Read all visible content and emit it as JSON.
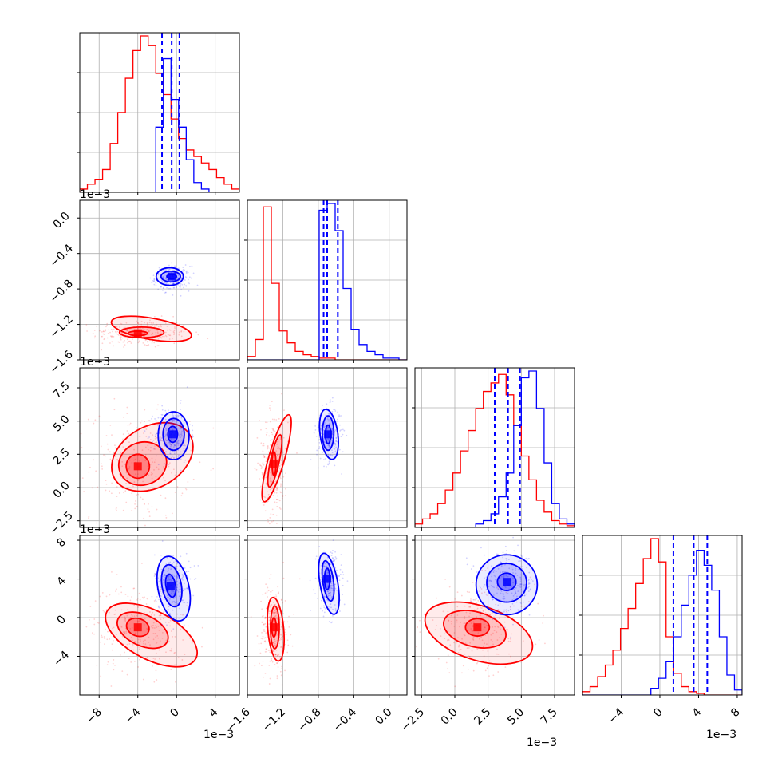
{
  "chart_data": {
    "type": "corner",
    "title": "",
    "grid": true,
    "series_colors": {
      "red": "#ff0000",
      "blue": "#0000ff"
    },
    "parameters": [
      {
        "id": "p0",
        "range": [
          -10,
          6.5
        ],
        "ticks": [
          -8,
          -4,
          0,
          4
        ],
        "tick_labels": [
          "−8",
          "−4",
          "0",
          "4"
        ],
        "offset_text": "1e−3"
      },
      {
        "id": "p1",
        "range": [
          -1.6,
          0.2
        ],
        "ticks": [
          -1.6,
          -1.2,
          -0.8,
          -0.4,
          0.0
        ],
        "tick_labels": [
          "−1.6",
          "−1.2",
          "−0.8",
          "−0.4",
          "0.0"
        ],
        "offset_text": "1e−3"
      },
      {
        "id": "p2",
        "range": [
          -3,
          9
        ],
        "ticks": [
          -2.5,
          0.0,
          2.5,
          5.0,
          7.5
        ],
        "tick_labels": [
          "−2.5",
          "0.0",
          "2.5",
          "5.0",
          "7.5"
        ],
        "offset_text": "1e−3"
      },
      {
        "id": "p3",
        "range": [
          -8,
          8.5
        ],
        "ticks": [
          -4,
          0,
          4,
          8
        ],
        "tick_labels": [
          "−4",
          "0",
          "4",
          "8"
        ],
        "offset_text": "1e−3",
        "y_ticks": [
          -4,
          0,
          4,
          8
        ],
        "y_tick_labels": [
          "−4",
          "0",
          "4",
          "8"
        ]
      }
    ],
    "series": [
      {
        "color": "red",
        "mean": [
          -3.8,
          -1.3,
          1.7,
          -1.0
        ],
        "sd": [
          2.2,
          0.07,
          1.8,
          2.0
        ],
        "histograms": [
          {
            "edges": [
              -10,
              6.5
            ],
            "counts": [
              2,
              5,
              8,
              14,
              30,
              49,
              70,
              87,
              96,
              90,
              73,
              60,
              45,
              33,
              26,
              22,
              18,
              14,
              9,
              5,
              2
            ]
          },
          {
            "edges": [
              -1.6,
              0.2
            ],
            "counts": [
              2,
              12,
              90,
              45,
              17,
              10,
              5,
              3,
              2,
              1,
              1,
              0,
              0,
              0,
              0,
              0,
              0,
              0,
              0,
              0
            ]
          },
          {
            "edges": [
              -3,
              9
            ],
            "counts": [
              2,
              5,
              8,
              14,
              22,
              32,
              45,
              57,
              70,
              80,
              85,
              90,
              78,
              60,
              42,
              28,
              16,
              9,
              4,
              2,
              1
            ]
          },
          {
            "edges": [
              -8,
              8.5
            ],
            "counts": [
              2,
              5,
              11,
              18,
              27,
              40,
              52,
              67,
              82,
              94,
              80,
              35,
              13,
              5,
              2,
              1,
              0,
              0,
              0,
              0,
              0
            ]
          }
        ],
        "pairs": [
          {
            "x": 0,
            "y": 1,
            "contours": [
              {
                "cx": -4,
                "cy": -1.3,
                "rx": 1.0,
                "ry": 0.025,
                "angle": 0
              },
              {
                "cx": -3.6,
                "cy": -1.29,
                "rx": 2.3,
                "ry": 0.06,
                "angle": 0
              },
              {
                "cx": -2.6,
                "cy": -1.25,
                "rx": 4.2,
                "ry": 0.12,
                "angle": -10
              }
            ]
          },
          {
            "x": 0,
            "y": 2,
            "contours": [
              {
                "cx": -4,
                "cy": 1.6,
                "rx": 1.2,
                "ry": 0.9,
                "angle": 10
              },
              {
                "cx": -3.5,
                "cy": 1.8,
                "rx": 2.5,
                "ry": 1.6,
                "angle": 20
              },
              {
                "cx": -2.5,
                "cy": 2.3,
                "rx": 4.5,
                "ry": 2.3,
                "angle": 30
              }
            ]
          },
          {
            "x": 1,
            "y": 2,
            "contours": [
              {
                "cx": -1.3,
                "cy": 1.8,
                "rx": 0.022,
                "ry": 0.9,
                "angle": 0
              },
              {
                "cx": -1.29,
                "cy": 2.0,
                "rx": 0.05,
                "ry": 2.0,
                "angle": -12
              },
              {
                "cx": -1.27,
                "cy": 2.2,
                "rx": 0.09,
                "ry": 3.4,
                "angle": -16
              }
            ]
          },
          {
            "x": 0,
            "y": 3,
            "contours": [
              {
                "cx": -4,
                "cy": -1.0,
                "rx": 1.2,
                "ry": 0.9,
                "angle": -20
              },
              {
                "cx": -3.5,
                "cy": -1.3,
                "rx": 2.8,
                "ry": 1.6,
                "angle": -25
              },
              {
                "cx": -2.6,
                "cy": -1.8,
                "rx": 5.2,
                "ry": 2.5,
                "angle": -28
              }
            ]
          },
          {
            "x": 1,
            "y": 3,
            "contours": [
              {
                "cx": -1.3,
                "cy": -1.0,
                "rx": 0.025,
                "ry": 1.0,
                "angle": 0
              },
              {
                "cx": -1.29,
                "cy": -1.0,
                "rx": 0.05,
                "ry": 2.2,
                "angle": 0
              },
              {
                "cx": -1.28,
                "cy": -1.2,
                "rx": 0.09,
                "ry": 3.3,
                "angle": 5
              }
            ]
          },
          {
            "x": 2,
            "y": 3,
            "contours": [
              {
                "cx": 1.7,
                "cy": -1.0,
                "rx": 0.9,
                "ry": 0.9,
                "angle": 0
              },
              {
                "cx": 1.5,
                "cy": -1.2,
                "rx": 2.4,
                "ry": 1.8,
                "angle": -15
              },
              {
                "cx": 1.8,
                "cy": -1.6,
                "rx": 4.2,
                "ry": 2.8,
                "angle": -18
              }
            ]
          }
        ]
      },
      {
        "color": "blue",
        "mean": [
          -0.4,
          -0.68,
          4.0,
          3.5
        ],
        "sd": [
          0.8,
          0.06,
          0.9,
          1.4
        ],
        "quantiles": [
          [
            -1.5,
            -0.5,
            0.3
          ],
          [
            -0.74,
            -0.7,
            -0.58
          ],
          [
            3.0,
            4.0,
            4.9
          ],
          [
            1.4,
            3.5,
            4.9
          ]
        ],
        "histograms": [
          {
            "edges": [
              -10,
              6.5
            ],
            "counts": [
              0,
              0,
              0,
              0,
              0,
              0,
              0,
              0,
              0,
              0,
              40,
              82,
              57,
              40,
              20,
              6,
              2,
              0,
              0,
              0,
              0
            ]
          },
          {
            "edges": [
              -1.6,
              0.2
            ],
            "counts": [
              0,
              0,
              0,
              0,
              0,
              0,
              0,
              0,
              0,
              88,
              92,
              76,
              42,
              18,
              9,
              5,
              3,
              1,
              1,
              0
            ]
          },
          {
            "edges": [
              -3,
              9
            ],
            "counts": [
              0,
              0,
              0,
              0,
              0,
              0,
              0,
              0,
              2,
              4,
              8,
              18,
              32,
              60,
              88,
              92,
              70,
              38,
              14,
              5,
              2
            ]
          },
          {
            "edges": [
              -8,
              8.5
            ],
            "counts": [
              0,
              0,
              0,
              0,
              0,
              0,
              0,
              0,
              0,
              4,
              10,
              20,
              35,
              54,
              72,
              87,
              78,
              63,
              35,
              12,
              3
            ]
          }
        ],
        "pairs": [
          {
            "x": 0,
            "y": 1,
            "contours": [
              {
                "cx": -0.5,
                "cy": -0.66,
                "rx": 0.5,
                "ry": 0.025,
                "angle": 0
              },
              {
                "cx": -0.6,
                "cy": -0.66,
                "rx": 1.0,
                "ry": 0.06,
                "angle": 0
              },
              {
                "cx": -0.7,
                "cy": -0.66,
                "rx": 1.4,
                "ry": 0.1,
                "angle": 0
              }
            ]
          },
          {
            "x": 0,
            "y": 2,
            "contours": [
              {
                "cx": -0.4,
                "cy": 4.0,
                "rx": 0.5,
                "ry": 0.6,
                "angle": 0
              },
              {
                "cx": -0.3,
                "cy": 4.0,
                "rx": 1.1,
                "ry": 1.2,
                "angle": 0
              },
              {
                "cx": -0.3,
                "cy": 3.9,
                "rx": 1.6,
                "ry": 1.8,
                "angle": 0
              }
            ]
          },
          {
            "x": 1,
            "y": 2,
            "contours": [
              {
                "cx": -0.69,
                "cy": 4.0,
                "rx": 0.03,
                "ry": 0.7,
                "angle": 0
              },
              {
                "cx": -0.69,
                "cy": 4.1,
                "rx": 0.065,
                "ry": 1.3,
                "angle": 0
              },
              {
                "cx": -0.68,
                "cy": 4.0,
                "rx": 0.1,
                "ry": 1.9,
                "angle": 8
              }
            ]
          },
          {
            "x": 0,
            "y": 3,
            "contours": [
              {
                "cx": -0.6,
                "cy": 3.3,
                "rx": 0.5,
                "ry": 1.2,
                "angle": 10
              },
              {
                "cx": -0.5,
                "cy": 3.3,
                "rx": 1.0,
                "ry": 2.2,
                "angle": 10
              },
              {
                "cx": -0.3,
                "cy": 3.0,
                "rx": 1.6,
                "ry": 3.4,
                "angle": 12
              }
            ]
          },
          {
            "x": 1,
            "y": 3,
            "contours": [
              {
                "cx": -0.7,
                "cy": 4.0,
                "rx": 0.03,
                "ry": 1.1,
                "angle": 0
              },
              {
                "cx": -0.69,
                "cy": 3.8,
                "rx": 0.06,
                "ry": 2.1,
                "angle": 8
              },
              {
                "cx": -0.68,
                "cy": 3.5,
                "rx": 0.1,
                "ry": 3.2,
                "angle": 10
              }
            ]
          },
          {
            "x": 2,
            "y": 3,
            "contours": [
              {
                "cx": 3.9,
                "cy": 3.7,
                "rx": 0.7,
                "ry": 0.9,
                "angle": 0
              },
              {
                "cx": 3.9,
                "cy": 3.6,
                "rx": 1.5,
                "ry": 2.0,
                "angle": 0
              },
              {
                "cx": 3.9,
                "cy": 3.4,
                "rx": 2.3,
                "ry": 3.1,
                "angle": 0
              }
            ]
          }
        ]
      }
    ]
  }
}
